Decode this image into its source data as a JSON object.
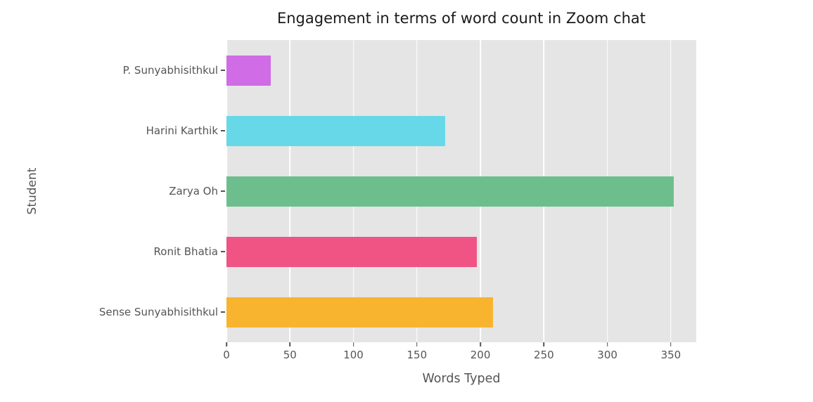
{
  "chart_data": {
    "type": "bar",
    "orientation": "horizontal",
    "title": "Engagement in terms of word count in Zoom chat",
    "xlabel": "Words Typed",
    "ylabel": "Student",
    "categories": [
      "P. Sunyabhisithkul",
      "Harini Karthik",
      "Zarya Oh",
      "Ronit Bhatia",
      "Sense Sunyabhisithkul"
    ],
    "values": [
      35,
      172,
      352,
      197,
      210
    ],
    "bar_colors": [
      "#cf6ce6",
      "#67d8e8",
      "#6dbe8d",
      "#f05484",
      "#f8b42e"
    ],
    "x_ticks": [
      0,
      50,
      100,
      150,
      200,
      250,
      300,
      350
    ],
    "xlim": [
      0,
      370
    ],
    "grid": true,
    "legend": false,
    "plot_background": "#e5e5e5",
    "grid_color": "#ffffff",
    "tick_text_color": "#555555",
    "title_color": "#1a1a1a"
  }
}
